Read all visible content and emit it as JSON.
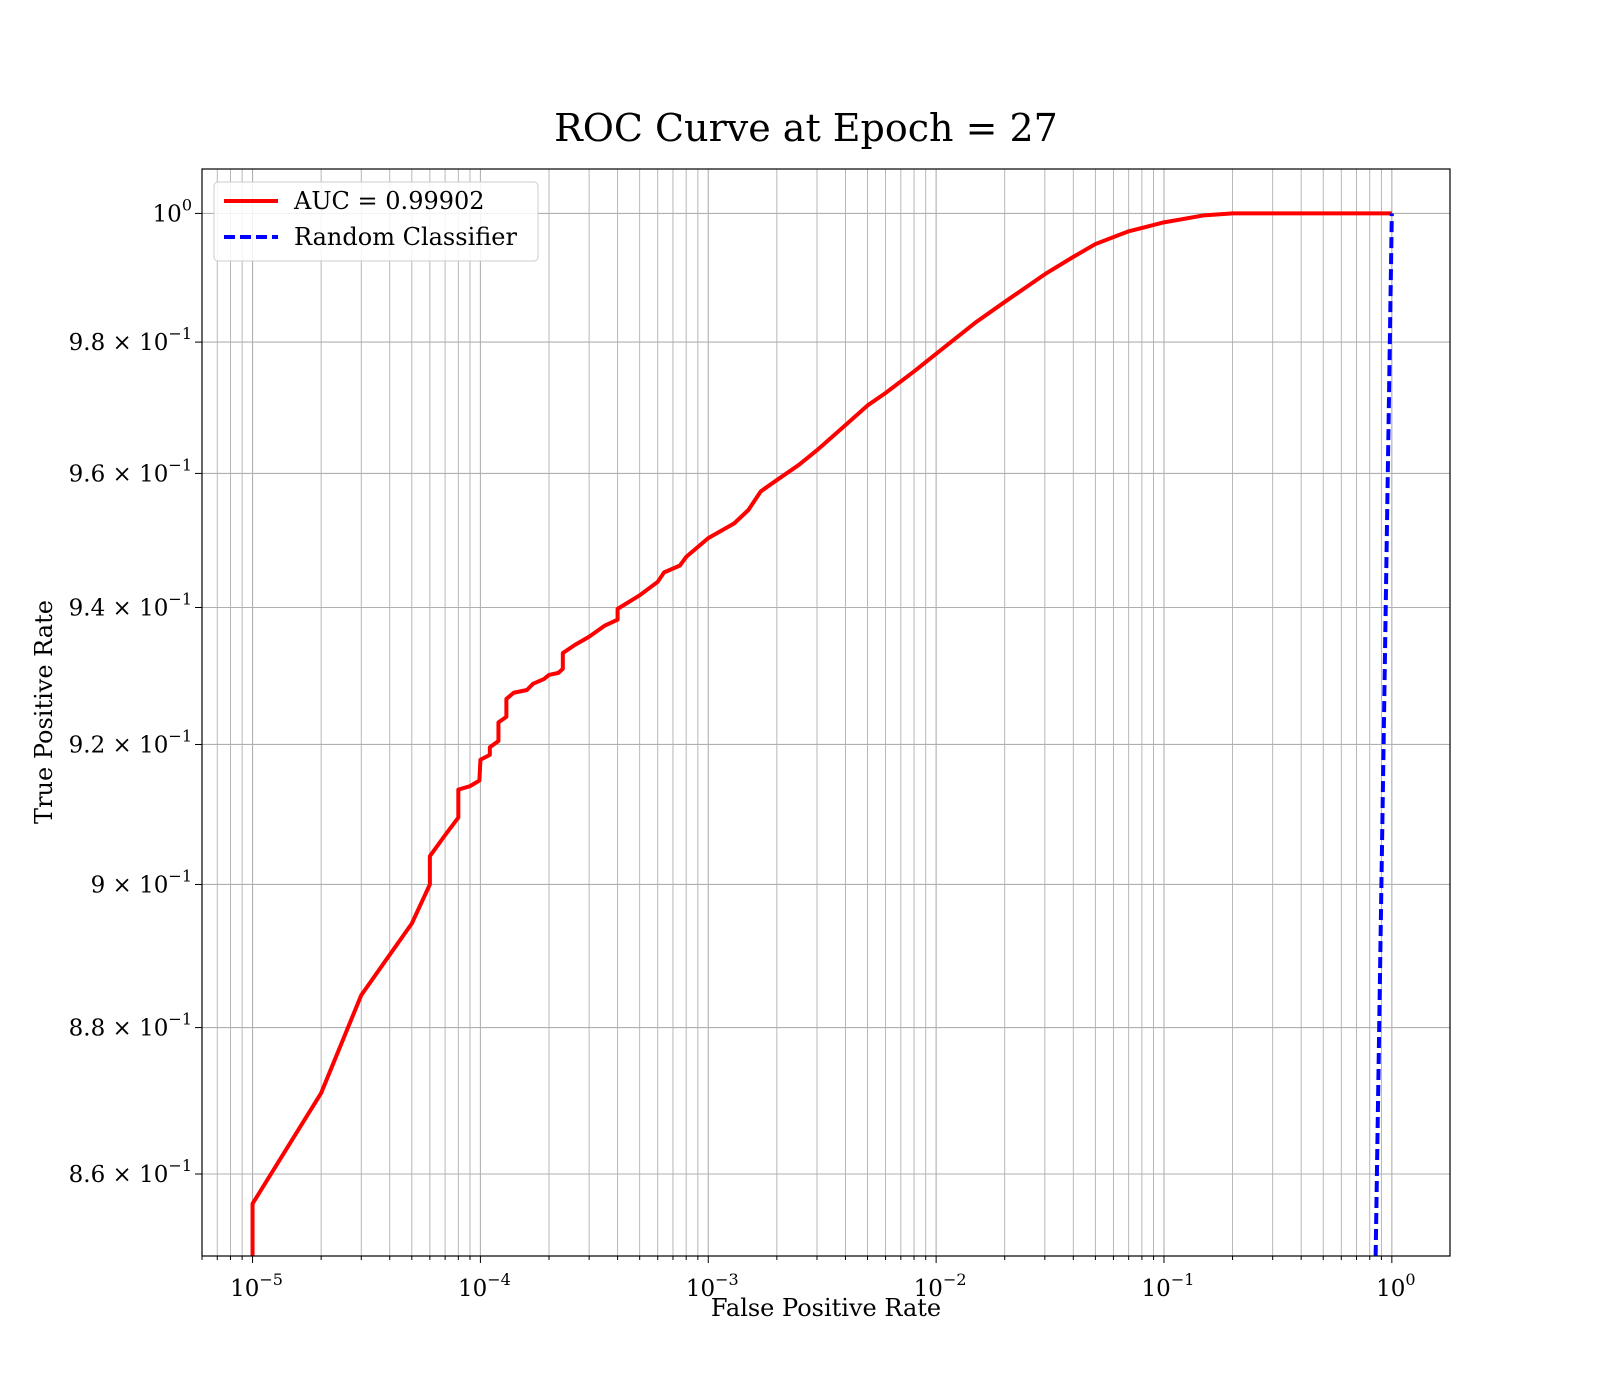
{
  "chart_data": {
    "type": "line",
    "title": "ROC Curve at Epoch = 27",
    "xlabel": "False Positive Rate",
    "ylabel": "True Positive Rate",
    "xscale": "log",
    "yscale": "log",
    "xlim": [
      6e-06,
      1.8
    ],
    "ylim": [
      0.849,
      1.007
    ],
    "grid": "both (major and minor)",
    "legend_position": "upper-left",
    "x_ticks": [
      {
        "value": 1e-05,
        "base": "10",
        "exp": "−5"
      },
      {
        "value": 0.0001,
        "base": "10",
        "exp": "−4"
      },
      {
        "value": 0.001,
        "base": "10",
        "exp": "−3"
      },
      {
        "value": 0.01,
        "base": "10",
        "exp": "−2"
      },
      {
        "value": 0.1,
        "base": "10",
        "exp": "−1"
      },
      {
        "value": 1,
        "base": "10",
        "exp": "0"
      }
    ],
    "y_ticks": [
      {
        "value": 0.86,
        "mant": "8.6 × 10",
        "exp": "−1"
      },
      {
        "value": 0.88,
        "mant": "8.8 × 10",
        "exp": "−1"
      },
      {
        "value": 0.9,
        "mant": "9 × 10",
        "exp": "−1"
      },
      {
        "value": 0.92,
        "mant": "9.2 × 10",
        "exp": "−1"
      },
      {
        "value": 0.94,
        "mant": "9.4 × 10",
        "exp": "−1"
      },
      {
        "value": 0.96,
        "mant": "9.6 × 10",
        "exp": "−1"
      },
      {
        "value": 0.98,
        "mant": "9.8 × 10",
        "exp": "−1"
      },
      {
        "value": 1.0,
        "mant": "10",
        "exp": "0"
      }
    ],
    "series": [
      {
        "name": "AUC = 0.99902",
        "color": "#ff0000",
        "style": "solid",
        "points": [
          [
            1e-05,
            0.849
          ],
          [
            1e-05,
            0.856
          ],
          [
            2e-05,
            0.871
          ],
          [
            3e-05,
            0.8845
          ],
          [
            5e-05,
            0.8945
          ],
          [
            6e-05,
            0.9
          ],
          [
            6e-05,
            0.904
          ],
          [
            7e-05,
            0.907
          ],
          [
            8e-05,
            0.9095
          ],
          [
            8e-05,
            0.9135
          ],
          [
            9e-05,
            0.914
          ],
          [
            9.9e-05,
            0.9148
          ],
          [
            0.0001,
            0.9178
          ],
          [
            0.00011,
            0.9185
          ],
          [
            0.00011,
            0.9196
          ],
          [
            0.00012,
            0.9205
          ],
          [
            0.00012,
            0.9232
          ],
          [
            0.00013,
            0.924
          ],
          [
            0.00013,
            0.9266
          ],
          [
            0.00014,
            0.9275
          ],
          [
            0.00016,
            0.9279
          ],
          [
            0.00017,
            0.9288
          ],
          [
            0.00019,
            0.9295
          ],
          [
            0.0002,
            0.9301
          ],
          [
            0.00022,
            0.9304
          ],
          [
            0.00023,
            0.931
          ],
          [
            0.00023,
            0.9333
          ],
          [
            0.00026,
            0.9345
          ],
          [
            0.0003,
            0.9357
          ],
          [
            0.00035,
            0.9373
          ],
          [
            0.0004,
            0.9382
          ],
          [
            0.0004,
            0.9398
          ],
          [
            0.0005,
            0.9418
          ],
          [
            0.0006,
            0.9438
          ],
          [
            0.00064,
            0.9452
          ],
          [
            0.00075,
            0.9462
          ],
          [
            0.0008,
            0.9475
          ],
          [
            0.001,
            0.9503
          ],
          [
            0.0013,
            0.9525
          ],
          [
            0.0015,
            0.9545
          ],
          [
            0.0017,
            0.9573
          ],
          [
            0.002,
            0.959
          ],
          [
            0.0025,
            0.9613
          ],
          [
            0.003,
            0.9635
          ],
          [
            0.004,
            0.9673
          ],
          [
            0.005,
            0.9703
          ],
          [
            0.006,
            0.9722
          ],
          [
            0.008,
            0.9755
          ],
          [
            0.01,
            0.9782
          ],
          [
            0.015,
            0.9831
          ],
          [
            0.02,
            0.9862
          ],
          [
            0.03,
            0.9905
          ],
          [
            0.04,
            0.9932
          ],
          [
            0.05,
            0.9952
          ],
          [
            0.07,
            0.9972
          ],
          [
            0.1,
            0.9986
          ],
          [
            0.15,
            0.9997
          ],
          [
            0.2,
            1.0
          ],
          [
            1.0,
            1.0
          ]
        ]
      },
      {
        "name": "Random Classifier",
        "color": "#0000ff",
        "style": "dashed",
        "points": [
          [
            0.849,
            0.849
          ],
          [
            1.0,
            1.0
          ]
        ]
      }
    ]
  }
}
